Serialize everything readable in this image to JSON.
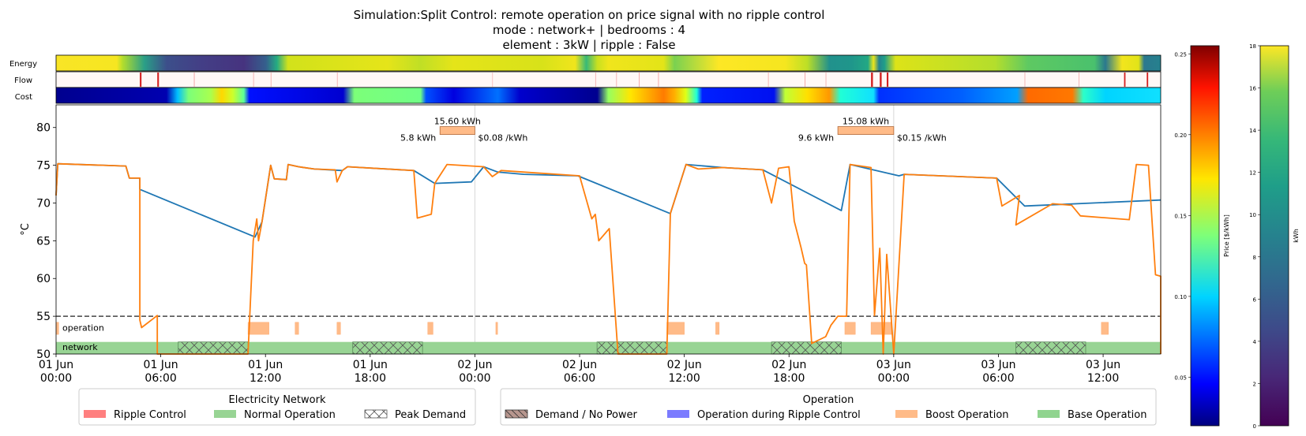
{
  "title_lines": [
    "Simulation:Split Control: remote operation on price signal with no ripple control",
    "mode : network+ | bedrooms : 4",
    "element : 3kW | ripple : False"
  ],
  "strip_labels": {
    "energy": "Energy",
    "flow": "Flow",
    "cost": "Cost"
  },
  "chart_data": {
    "type": "line",
    "title": "Simulation:Split Control: remote operation on price signal with no ripple control",
    "ylabel": "°C",
    "ylim": [
      50,
      83
    ],
    "xlim_hours": [
      0,
      63.3
    ],
    "yticks": [
      50,
      55,
      60,
      65,
      70,
      75,
      80
    ],
    "xticks": [
      {
        "h": 0,
        "label": "01 Jun\n00:00"
      },
      {
        "h": 6,
        "label": "01 Jun\n06:00"
      },
      {
        "h": 12,
        "label": "01 Jun\n12:00"
      },
      {
        "h": 18,
        "label": "01 Jun\n18:00"
      },
      {
        "h": 24,
        "label": "02 Jun\n00:00"
      },
      {
        "h": 30,
        "label": "02 Jun\n06:00"
      },
      {
        "h": 36,
        "label": "02 Jun\n12:00"
      },
      {
        "h": 42,
        "label": "02 Jun\n18:00"
      },
      {
        "h": 48,
        "label": "03 Jun\n00:00"
      },
      {
        "h": 54,
        "label": "03 Jun\n06:00"
      },
      {
        "h": 60,
        "label": "03 Jun\n12:00"
      }
    ],
    "threshold": 55,
    "band_labels": {
      "operation": "operation",
      "network": "network"
    },
    "series": [
      {
        "color": "#1f77b4",
        "points": [
          [
            0,
            71
          ],
          [
            0.1,
            75.2
          ],
          [
            4,
            74.9
          ],
          [
            4.2,
            73.3
          ],
          [
            4.8,
            73.3
          ],
          [
            4.8,
            71.8
          ],
          [
            11.4,
            65.5
          ],
          [
            11.8,
            67.5
          ],
          [
            12.3,
            75
          ],
          [
            12.5,
            73.2
          ],
          [
            13.2,
            73.1
          ],
          [
            13.3,
            75.1
          ],
          [
            13.9,
            74.8
          ],
          [
            14.8,
            74.5
          ],
          [
            16.4,
            74.3
          ],
          [
            16.7,
            74.8
          ],
          [
            20.5,
            74.3
          ],
          [
            21.7,
            72.6
          ],
          [
            23.8,
            72.8
          ],
          [
            24.5,
            74.8
          ],
          [
            25.3,
            74.1
          ],
          [
            26.8,
            73.8
          ],
          [
            29.9,
            73.6
          ],
          [
            35.2,
            68.6
          ],
          [
            36.1,
            75.1
          ],
          [
            38.2,
            74.7
          ],
          [
            40.5,
            74.4
          ],
          [
            45,
            69
          ],
          [
            45.5,
            75.1
          ],
          [
            48.3,
            73.6
          ],
          [
            48.6,
            73.8
          ],
          [
            53.9,
            73.3
          ],
          [
            55.5,
            69.6
          ],
          [
            63.3,
            70.4
          ]
        ]
      },
      {
        "color": "#ff7f0e",
        "points": [
          [
            0,
            71
          ],
          [
            0.1,
            75.2
          ],
          [
            4,
            74.9
          ],
          [
            4.2,
            73.3
          ],
          [
            4.8,
            73.3
          ],
          [
            4.8,
            54.5
          ],
          [
            4.9,
            53.5
          ],
          [
            5.8,
            55.1
          ],
          [
            5.8,
            50
          ],
          [
            11,
            50
          ],
          [
            11.3,
            65
          ],
          [
            11.5,
            67.9
          ],
          [
            11.6,
            65
          ],
          [
            11.8,
            67.5
          ],
          [
            12.3,
            75
          ],
          [
            12.5,
            73.2
          ],
          [
            13.2,
            73.1
          ],
          [
            13.3,
            75.1
          ],
          [
            13.9,
            74.8
          ],
          [
            14.8,
            74.5
          ],
          [
            16,
            74.4
          ],
          [
            16.1,
            72.8
          ],
          [
            16.4,
            74.3
          ],
          [
            16.7,
            74.8
          ],
          [
            20.5,
            74.3
          ],
          [
            20.7,
            68
          ],
          [
            21.5,
            68.5
          ],
          [
            21.7,
            72.6
          ],
          [
            22.4,
            75.1
          ],
          [
            24.5,
            74.8
          ],
          [
            25,
            73.5
          ],
          [
            25.5,
            74.3
          ],
          [
            30,
            73.6
          ],
          [
            30.7,
            67.9
          ],
          [
            30.9,
            68.5
          ],
          [
            31.1,
            65
          ],
          [
            31.7,
            66.6
          ],
          [
            32.2,
            50
          ],
          [
            35,
            50
          ],
          [
            35.2,
            68.6
          ],
          [
            36.1,
            75.1
          ],
          [
            36.8,
            74.5
          ],
          [
            38.2,
            74.7
          ],
          [
            40.5,
            74.4
          ],
          [
            41,
            70
          ],
          [
            41.4,
            74.6
          ],
          [
            42,
            74.8
          ],
          [
            42.3,
            67.6
          ],
          [
            42.7,
            64
          ],
          [
            42.9,
            62
          ],
          [
            43,
            61.8
          ],
          [
            43.3,
            51.4
          ],
          [
            44.1,
            52.3
          ],
          [
            44.4,
            53.8
          ],
          [
            44.8,
            55
          ],
          [
            45.3,
            55
          ],
          [
            45.5,
            75.1
          ],
          [
            46.7,
            74.7
          ],
          [
            46.9,
            55.1
          ],
          [
            47.2,
            64
          ],
          [
            47.4,
            50
          ],
          [
            47.6,
            63.2
          ],
          [
            48,
            50
          ],
          [
            48.6,
            73.8
          ],
          [
            53.9,
            73.3
          ],
          [
            54.2,
            69.6
          ],
          [
            55.2,
            71
          ],
          [
            55,
            67.1
          ],
          [
            57.1,
            69.9
          ],
          [
            58.2,
            69.7
          ],
          [
            58.7,
            68.3
          ],
          [
            61.5,
            67.8
          ],
          [
            61.9,
            75.1
          ],
          [
            62.6,
            75
          ],
          [
            63,
            60.5
          ],
          [
            63.3,
            60.3
          ],
          [
            63.5,
            50
          ]
        ]
      }
    ],
    "operation_boosts": [
      [
        11,
        12.2
      ],
      [
        13.7,
        13.9
      ],
      [
        16.1,
        16.3
      ],
      [
        21.3,
        21.6
      ],
      [
        25.2,
        25.3
      ],
      [
        35,
        36
      ],
      [
        37.8,
        38
      ],
      [
        45.2,
        45.8
      ],
      [
        46.7,
        47.9
      ],
      [
        59.9,
        60.3
      ],
      [
        0,
        0.15
      ]
    ],
    "network_peak": [
      [
        7,
        11
      ],
      [
        17,
        21
      ],
      [
        31,
        35
      ],
      [
        41,
        45
      ],
      [
        55,
        59
      ]
    ],
    "annotations": [
      {
        "box_h": [
          22,
          24
        ],
        "value": 79.6,
        "above": "15.60 kWh",
        "left": "5.8 kWh",
        "right": "$0.08 /kWh",
        "guide_h": 24
      },
      {
        "box_h": [
          44.8,
          48
        ],
        "value": 79.6,
        "above": "15.08 kWh",
        "left": "9.6 kWh",
        "right": "$0.15 /kWh",
        "guide_h": 48
      }
    ],
    "price_colorbar": {
      "label": "Price [$/kWh]",
      "ticks": [
        "0.05",
        "0.10",
        "0.15",
        "0.20",
        "0.25"
      ],
      "range": [
        0.02,
        0.255
      ]
    },
    "energy_colorbar": {
      "label": "kWh",
      "ticks": [
        "0",
        "2",
        "4",
        "6",
        "8",
        "10",
        "12",
        "14",
        "16",
        "18"
      ],
      "range": [
        0,
        18
      ]
    }
  },
  "legends": [
    {
      "title": "Electricity Network",
      "items": [
        {
          "label": "Ripple Control",
          "color": "#ff7f7f",
          "hatch": false
        },
        {
          "label": "Normal Operation",
          "color": "#98d494",
          "hatch": false
        },
        {
          "label": "Peak Demand",
          "color": "#ffffff",
          "hatch": true
        }
      ]
    },
    {
      "title": "Operation",
      "items": [
        {
          "label": "Demand / No Power",
          "color": "#b7968e",
          "hatch": "diag"
        },
        {
          "label": "Operation during Ripple Control",
          "color": "#7b7bff",
          "hatch": false
        },
        {
          "label": "Boost Operation",
          "color": "#ffbb88",
          "hatch": false
        },
        {
          "label": "Base Operation",
          "color": "#90d48f",
          "hatch": false
        }
      ]
    }
  ]
}
